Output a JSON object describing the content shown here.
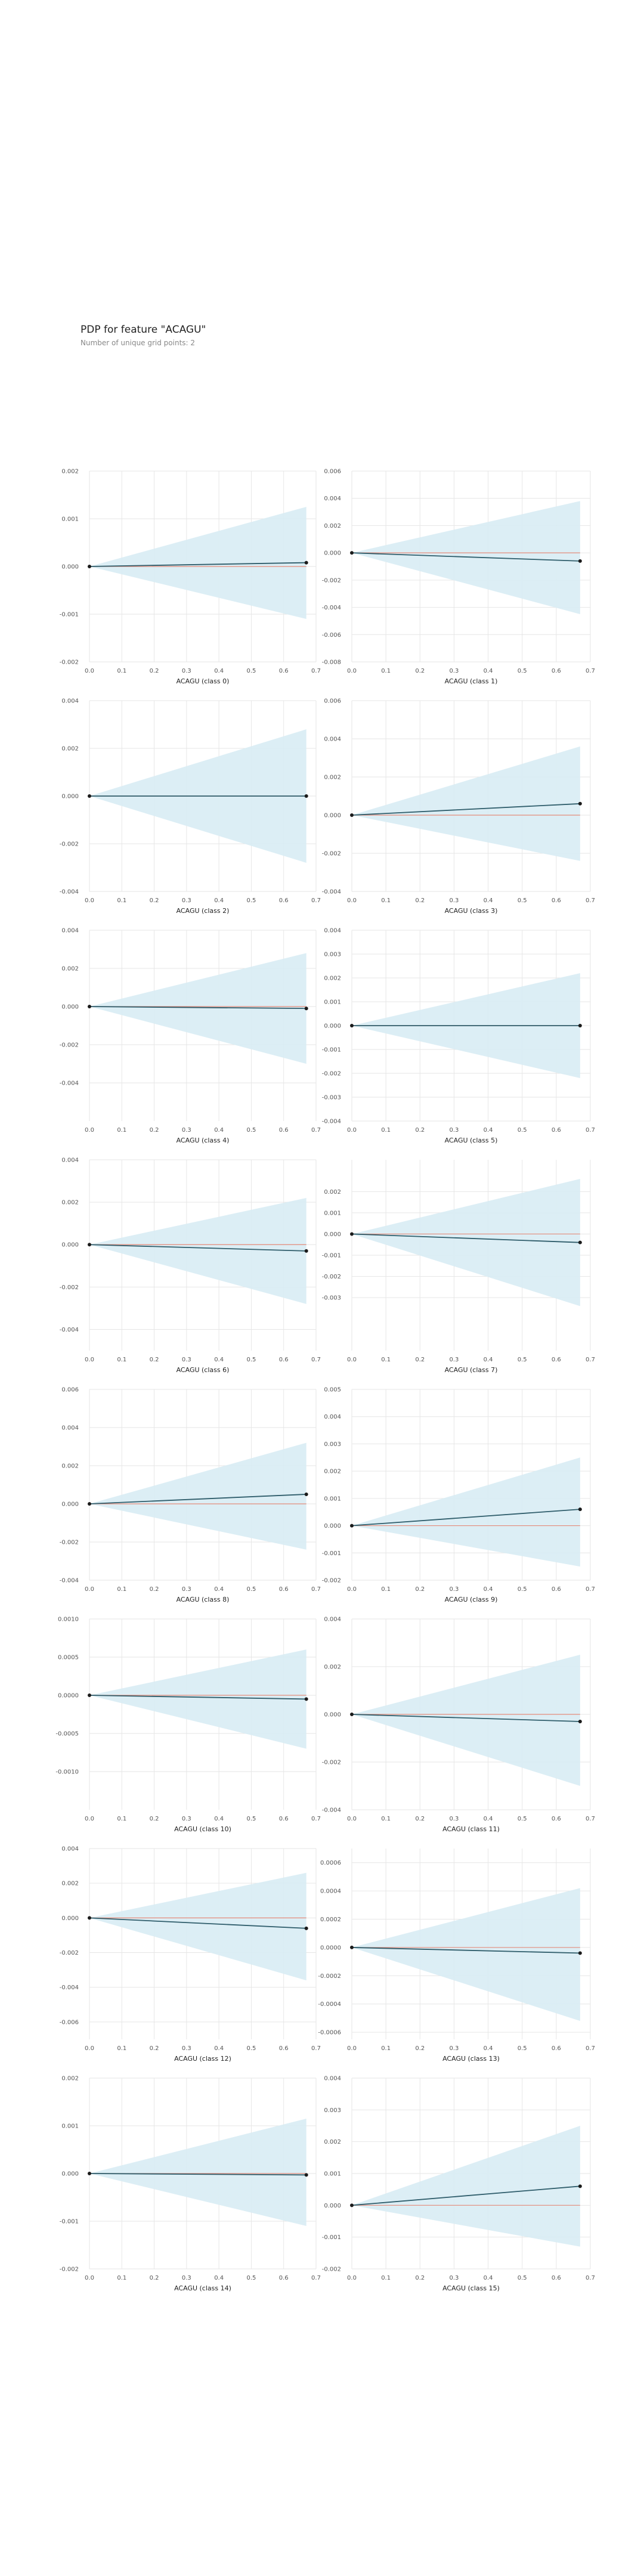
{
  "header": {
    "title": "PDP for feature \"ACAGU\"",
    "subtitle": "Number of unique grid points: 2"
  },
  "colors": {
    "band": "#d8ecf4",
    "line": "#2f5d6b",
    "zero": "#e48a7a",
    "grid": "#e6e6e6"
  },
  "chart_data": [
    {
      "type": "line",
      "xlabel": "ACAGU (class 0)",
      "x": [
        0,
        0.67
      ],
      "y": [
        0,
        8e-05
      ],
      "upper": [
        0,
        0.00125
      ],
      "lower": [
        0,
        -0.0011
      ],
      "ylim": [
        -0.002,
        0.002
      ],
      "yticks": [
        "0.002",
        "0.001",
        "0.000",
        "-0.001",
        "-0.002"
      ],
      "xlim": [
        0,
        0.7
      ],
      "xticks": [
        "0.0",
        "0.1",
        "0.2",
        "0.3",
        "0.4",
        "0.5",
        "0.6",
        "0.7"
      ]
    },
    {
      "type": "line",
      "xlabel": "ACAGU (class 1)",
      "x": [
        0,
        0.67
      ],
      "y": [
        0,
        -0.0006
      ],
      "upper": [
        0,
        0.0038
      ],
      "lower": [
        0,
        -0.0045
      ],
      "ylim": [
        -0.008,
        0.006
      ],
      "yticks": [
        "0.006",
        "0.004",
        "0.002",
        "0.000",
        "-0.002",
        "-0.004",
        "-0.006",
        "-0.008"
      ],
      "xlim": [
        0,
        0.7
      ],
      "xticks": [
        "0.0",
        "0.1",
        "0.2",
        "0.3",
        "0.4",
        "0.5",
        "0.6",
        "0.7"
      ]
    },
    {
      "type": "line",
      "xlabel": "ACAGU (class 2)",
      "x": [
        0,
        0.67
      ],
      "y": [
        0,
        0
      ],
      "upper": [
        0,
        0.0028
      ],
      "lower": [
        0,
        -0.0028
      ],
      "ylim": [
        -0.004,
        0.004
      ],
      "yticks": [
        "0.004",
        "0.002",
        "0.000",
        "-0.002",
        "-0.004"
      ],
      "xlim": [
        0,
        0.7
      ],
      "xticks": [
        "0.0",
        "0.1",
        "0.2",
        "0.3",
        "0.4",
        "0.5",
        "0.6",
        "0.7"
      ]
    },
    {
      "type": "line",
      "xlabel": "ACAGU (class 3)",
      "x": [
        0,
        0.67
      ],
      "y": [
        0,
        0.0006
      ],
      "upper": [
        0,
        0.0036
      ],
      "lower": [
        0,
        -0.0024
      ],
      "ylim": [
        -0.004,
        0.006
      ],
      "yticks": [
        "0.006",
        "0.004",
        "0.002",
        "0.000",
        "-0.002",
        "-0.004"
      ],
      "xlim": [
        0,
        0.7
      ],
      "xticks": [
        "0.0",
        "0.1",
        "0.2",
        "0.3",
        "0.4",
        "0.5",
        "0.6",
        "0.7"
      ]
    },
    {
      "type": "line",
      "xlabel": "ACAGU (class 4)",
      "x": [
        0,
        0.67
      ],
      "y": [
        0,
        -0.0001
      ],
      "upper": [
        0,
        0.0028
      ],
      "lower": [
        0,
        -0.003
      ],
      "ylim": [
        -0.006,
        0.004
      ],
      "yticks": [
        "0.004",
        "0.002",
        "0.000",
        "-0.002",
        "-0.004"
      ],
      "xlim": [
        0,
        0.7
      ],
      "xticks": [
        "0.0",
        "0.1",
        "0.2",
        "0.3",
        "0.4",
        "0.5",
        "0.6",
        "0.7"
      ]
    },
    {
      "type": "line",
      "xlabel": "ACAGU (class 5)",
      "x": [
        0,
        0.67
      ],
      "y": [
        0,
        0
      ],
      "upper": [
        0,
        0.0022
      ],
      "lower": [
        0,
        -0.0022
      ],
      "ylim": [
        -0.004,
        0.004
      ],
      "yticks": [
        "0.004",
        "0.003",
        "0.002",
        "0.001",
        "0.000",
        "-0.001",
        "-0.002",
        "-0.003",
        "-0.004"
      ],
      "xlim": [
        0,
        0.7
      ],
      "xticks": [
        "0.0",
        "0.1",
        "0.2",
        "0.3",
        "0.4",
        "0.5",
        "0.6",
        "0.7"
      ]
    },
    {
      "type": "line",
      "xlabel": "ACAGU (class 6)",
      "x": [
        0,
        0.67
      ],
      "y": [
        0,
        -0.0003
      ],
      "upper": [
        0,
        0.0022
      ],
      "lower": [
        0,
        -0.0028
      ],
      "ylim": [
        -0.005,
        0.004
      ],
      "yticks": [
        "0.004",
        "0.002",
        "0.000",
        "-0.002",
        "-0.004"
      ],
      "xlim": [
        0,
        0.7
      ],
      "xticks": [
        "0.0",
        "0.1",
        "0.2",
        "0.3",
        "0.4",
        "0.5",
        "0.6",
        "0.7"
      ]
    },
    {
      "type": "line",
      "xlabel": "ACAGU (class 7)",
      "x": [
        0,
        0.67
      ],
      "y": [
        0,
        -0.0004
      ],
      "upper": [
        0,
        0.0026
      ],
      "lower": [
        0,
        -0.0034
      ],
      "ylim": [
        -0.0055,
        0.0035
      ],
      "yticks": [
        "0.002",
        "0.001",
        "0.000",
        "-0.001",
        "-0.002",
        "-0.003"
      ],
      "xlim": [
        0,
        0.7
      ],
      "xticks": [
        "0.0",
        "0.1",
        "0.2",
        "0.3",
        "0.4",
        "0.5",
        "0.6",
        "0.7"
      ]
    },
    {
      "type": "line",
      "xlabel": "ACAGU (class 8)",
      "x": [
        0,
        0.67
      ],
      "y": [
        0,
        0.0005
      ],
      "upper": [
        0,
        0.0032
      ],
      "lower": [
        0,
        -0.0024
      ],
      "ylim": [
        -0.004,
        0.006
      ],
      "yticks": [
        "0.006",
        "0.004",
        "0.002",
        "0.000",
        "-0.002",
        "-0.004"
      ],
      "xlim": [
        0,
        0.7
      ],
      "xticks": [
        "0.0",
        "0.1",
        "0.2",
        "0.3",
        "0.4",
        "0.5",
        "0.6",
        "0.7"
      ]
    },
    {
      "type": "line",
      "xlabel": "ACAGU (class 9)",
      "x": [
        0,
        0.67
      ],
      "y": [
        0,
        0.0006
      ],
      "upper": [
        0,
        0.0025
      ],
      "lower": [
        0,
        -0.0015
      ],
      "ylim": [
        -0.002,
        0.005
      ],
      "yticks": [
        "0.005",
        "0.004",
        "0.003",
        "0.002",
        "0.001",
        "0.000",
        "-0.001",
        "-0.002"
      ],
      "xlim": [
        0,
        0.7
      ],
      "xticks": [
        "0.0",
        "0.1",
        "0.2",
        "0.3",
        "0.4",
        "0.5",
        "0.6",
        "0.7"
      ]
    },
    {
      "type": "line",
      "xlabel": "ACAGU (class 10)",
      "x": [
        0,
        0.67
      ],
      "y": [
        0,
        -5e-05
      ],
      "upper": [
        0,
        0.0006
      ],
      "lower": [
        0,
        -0.0007
      ],
      "ylim": [
        -0.0015,
        0.001
      ],
      "yticks": [
        "0.0010",
        "0.0005",
        "0.0000",
        "-0.0005",
        "-0.0010"
      ],
      "xlim": [
        0,
        0.7
      ],
      "xticks": [
        "0.0",
        "0.1",
        "0.2",
        "0.3",
        "0.4",
        "0.5",
        "0.6",
        "0.7"
      ]
    },
    {
      "type": "line",
      "xlabel": "ACAGU (class 11)",
      "x": [
        0,
        0.67
      ],
      "y": [
        0,
        -0.0003
      ],
      "upper": [
        0,
        0.0025
      ],
      "lower": [
        0,
        -0.003
      ],
      "ylim": [
        -0.004,
        0.004
      ],
      "yticks": [
        "0.004",
        "0.002",
        "0.000",
        "-0.002",
        "-0.004"
      ],
      "xlim": [
        0,
        0.7
      ],
      "xticks": [
        "0.0",
        "0.1",
        "0.2",
        "0.3",
        "0.4",
        "0.5",
        "0.6",
        "0.7"
      ]
    },
    {
      "type": "line",
      "xlabel": "ACAGU (class 12)",
      "x": [
        0,
        0.67
      ],
      "y": [
        0,
        -0.0006
      ],
      "upper": [
        0,
        0.0026
      ],
      "lower": [
        0,
        -0.0036
      ],
      "ylim": [
        -0.007,
        0.004
      ],
      "yticks": [
        "0.004",
        "0.002",
        "0.000",
        "-0.002",
        "-0.004",
        "-0.006"
      ],
      "xlim": [
        0,
        0.7
      ],
      "xticks": [
        "0.0",
        "0.1",
        "0.2",
        "0.3",
        "0.4",
        "0.5",
        "0.6",
        "0.7"
      ]
    },
    {
      "type": "line",
      "xlabel": "ACAGU (class 13)",
      "x": [
        0,
        0.67
      ],
      "y": [
        0,
        -4e-05
      ],
      "upper": [
        0,
        0.00042
      ],
      "lower": [
        0,
        -0.00052
      ],
      "ylim": [
        -0.00065,
        0.0007
      ],
      "yticks": [
        "0.0006",
        "0.0004",
        "0.0002",
        "0.0000",
        "-0.0002",
        "-0.0004",
        "-0.0006"
      ],
      "xlim": [
        0,
        0.7
      ],
      "xticks": [
        "0.0",
        "0.1",
        "0.2",
        "0.3",
        "0.4",
        "0.5",
        "0.6",
        "0.7"
      ]
    },
    {
      "type": "line",
      "xlabel": "ACAGU (class 14)",
      "x": [
        0,
        0.67
      ],
      "y": [
        0,
        -3e-05
      ],
      "upper": [
        0,
        0.00115
      ],
      "lower": [
        0,
        -0.0011
      ],
      "ylim": [
        -0.002,
        0.002
      ],
      "yticks": [
        "0.002",
        "0.001",
        "0.000",
        "-0.001",
        "-0.002"
      ],
      "xlim": [
        0,
        0.7
      ],
      "xticks": [
        "0.0",
        "0.1",
        "0.2",
        "0.3",
        "0.4",
        "0.5",
        "0.6",
        "0.7"
      ]
    },
    {
      "type": "line",
      "xlabel": "ACAGU (class 15)",
      "x": [
        0,
        0.67
      ],
      "y": [
        0,
        0.0006
      ],
      "upper": [
        0,
        0.0025
      ],
      "lower": [
        0,
        -0.0013
      ],
      "ylim": [
        -0.002,
        0.004
      ],
      "yticks": [
        "0.004",
        "0.003",
        "0.002",
        "0.001",
        "0.000",
        "-0.001",
        "-0.002"
      ],
      "xlim": [
        0,
        0.7
      ],
      "xticks": [
        "0.0",
        "0.1",
        "0.2",
        "0.3",
        "0.4",
        "0.5",
        "0.6",
        "0.7"
      ]
    }
  ]
}
